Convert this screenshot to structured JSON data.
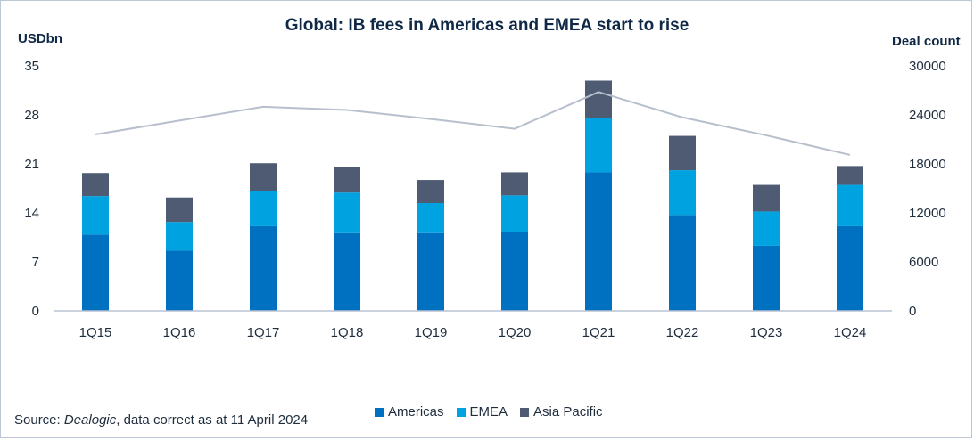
{
  "chart_data": {
    "type": "bar",
    "title": "Global: IB fees in Americas and EMEA start to rise",
    "ylabel": "USDbn",
    "y2label": "Deal count",
    "categories": [
      "1Q15",
      "1Q16",
      "1Q17",
      "1Q18",
      "1Q19",
      "1Q20",
      "1Q21",
      "1Q22",
      "1Q23",
      "1Q24"
    ],
    "stacked": true,
    "ylim": [
      0,
      35
    ],
    "yticks": [
      0,
      7,
      14,
      21,
      28,
      35
    ],
    "y2lim": [
      0,
      30000
    ],
    "y2ticks": [
      0,
      6000,
      12000,
      18000,
      24000,
      30000
    ],
    "series": [
      {
        "name": "Americas",
        "color": "#0070c0",
        "values": [
          10.9,
          8.6,
          12.1,
          11.1,
          11.1,
          11.2,
          19.8,
          13.7,
          9.3,
          12.1
        ]
      },
      {
        "name": "EMEA",
        "color": "#00a3e0",
        "values": [
          5.5,
          4.1,
          5.0,
          5.8,
          4.3,
          5.3,
          7.8,
          6.4,
          4.9,
          5.9
        ]
      },
      {
        "name": "Asia Pacific",
        "color": "#4e5b73",
        "values": [
          3.3,
          3.5,
          4.0,
          3.6,
          3.3,
          3.3,
          5.3,
          4.9,
          3.8,
          2.7
        ]
      }
    ],
    "line_series": {
      "axis": "right",
      "color": "#b7bfcc",
      "values": [
        21600,
        23300,
        25000,
        24600,
        23500,
        22300,
        26800,
        23700,
        21500,
        19100
      ]
    },
    "legend": "bottom",
    "grid": false
  },
  "units": {
    "left": "USDbn",
    "right": "Deal count"
  },
  "source": {
    "prefix": "Source: ",
    "name": "Dealogic",
    "suffix": ", data correct as at 11 April 2024"
  }
}
